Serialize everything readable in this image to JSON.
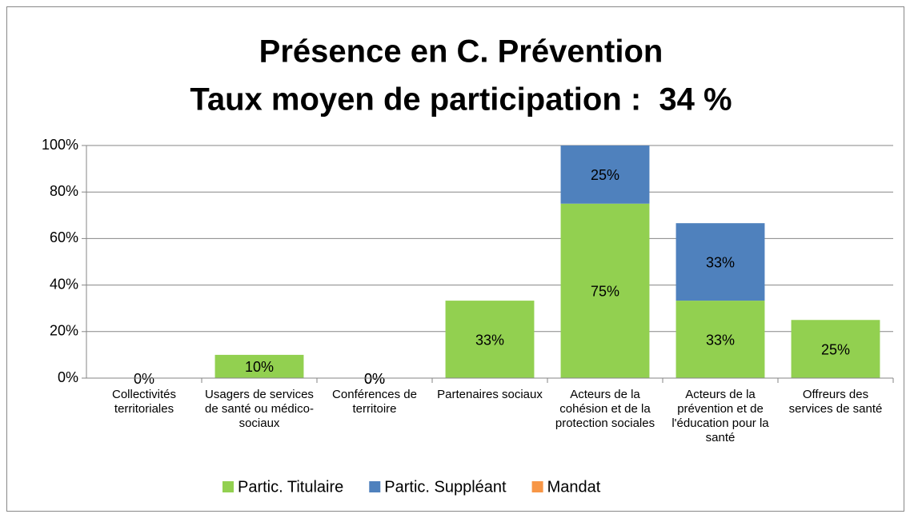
{
  "chart_data": {
    "type": "stacked_bar",
    "title": "Présence en C. Prévention",
    "subtitle": "Taux moyen de participation :  34 %",
    "categories": [
      "Collectivités territoriales",
      "Usagers de services de santé ou médico-sociaux",
      "Conférences de territoire",
      "Partenaires sociaux",
      "Acteurs de la cohésion et de la protection sociales",
      "Acteurs de la prévention et de l'éducation pour la santé",
      "Offreurs des services de santé"
    ],
    "series": [
      {
        "name": "Partic. Titulaire",
        "color": "#92d050",
        "values": [
          0,
          10,
          0,
          33.3,
          75,
          33.3,
          25
        ],
        "value_labels": [
          "0%",
          "10%",
          "0%",
          "33%",
          "75%",
          "33%",
          "25%"
        ]
      },
      {
        "name": "Partic. Suppléant",
        "color": "#4f81bd",
        "values": [
          0,
          0,
          0,
          0,
          25,
          33.3,
          0
        ],
        "value_labels": [
          null,
          null,
          "0%",
          null,
          "25%",
          "33%",
          null
        ]
      },
      {
        "name": "Mandat",
        "color": "#f79646",
        "values": [
          0,
          0,
          0,
          0,
          0,
          0,
          0
        ]
      }
    ],
    "ylim": [
      0,
      100
    ],
    "yticks": [
      {
        "value": 0,
        "label": "0%"
      },
      {
        "value": 20,
        "label": "20%"
      },
      {
        "value": 40,
        "label": "40%"
      },
      {
        "value": 60,
        "label": "60%"
      },
      {
        "value": 80,
        "label": "80%"
      },
      {
        "value": 100,
        "label": "100%"
      }
    ],
    "grid": true,
    "legend": "bottom"
  }
}
